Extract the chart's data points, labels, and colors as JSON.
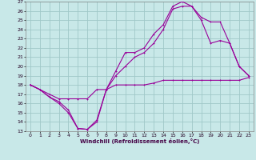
{
  "xlabel": "Windchill (Refroidissement éolien,°C)",
  "bg_color": "#c8e8e8",
  "grid_color": "#a0c8c8",
  "line_color": "#990099",
  "xlim": [
    -0.5,
    23.5
  ],
  "ylim": [
    13,
    27
  ],
  "xticks": [
    0,
    1,
    2,
    3,
    4,
    5,
    6,
    7,
    8,
    9,
    10,
    11,
    12,
    13,
    14,
    15,
    16,
    17,
    18,
    19,
    20,
    21,
    22,
    23
  ],
  "yticks": [
    13,
    14,
    15,
    16,
    17,
    18,
    19,
    20,
    21,
    22,
    23,
    24,
    25,
    26,
    27
  ],
  "series1_x": [
    0,
    1,
    2,
    3,
    4,
    5,
    6,
    7,
    8,
    9,
    10,
    11,
    12,
    13,
    14,
    15,
    16,
    17,
    18,
    19,
    20,
    21,
    22,
    23
  ],
  "series1_y": [
    18.0,
    17.5,
    17.0,
    16.5,
    16.5,
    16.5,
    16.5,
    17.5,
    17.5,
    18.0,
    18.0,
    18.0,
    18.0,
    18.2,
    18.5,
    18.5,
    18.5,
    18.5,
    18.5,
    18.5,
    18.5,
    18.5,
    18.5,
    18.8
  ],
  "series2_x": [
    0,
    1,
    2,
    3,
    4,
    5,
    6,
    7,
    8,
    9,
    10,
    11,
    12,
    13,
    14,
    15,
    16,
    17,
    18,
    19,
    20,
    21,
    22,
    23
  ],
  "series2_y": [
    18.0,
    17.5,
    16.7,
    16.2,
    15.3,
    13.3,
    13.2,
    14.2,
    17.5,
    19.5,
    21.5,
    21.5,
    22.0,
    23.5,
    24.5,
    26.5,
    27.0,
    26.5,
    25.0,
    22.5,
    22.8,
    22.5,
    20.0,
    19.0
  ],
  "series3_x": [
    0,
    1,
    2,
    3,
    4,
    5,
    6,
    7,
    8,
    9,
    10,
    11,
    12,
    13,
    14,
    15,
    16,
    17,
    18,
    19,
    20,
    21,
    22,
    23
  ],
  "series3_y": [
    18.0,
    17.5,
    16.7,
    16.0,
    15.0,
    13.3,
    13.2,
    14.0,
    17.5,
    19.0,
    20.0,
    21.0,
    21.5,
    22.5,
    24.0,
    26.2,
    26.5,
    26.5,
    25.3,
    24.8,
    24.8,
    22.5,
    20.0,
    19.0
  ]
}
